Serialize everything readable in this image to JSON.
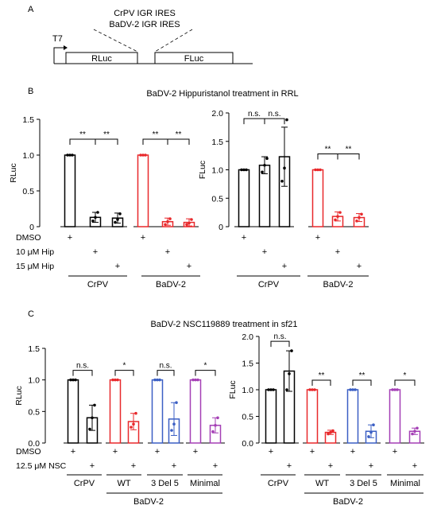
{
  "panel_labels": {
    "a": "A",
    "b": "B",
    "c": "C"
  },
  "construct": {
    "promoter": "T7",
    "ires_line1": "CrPV IGR IRES",
    "ires_line2": "BaDV-2 IGR IRES",
    "gene1": "RLuc",
    "gene2": "FLuc"
  },
  "panel_b": {
    "title": "BaDV-2 Hippuristanol treatment in RRL",
    "conditions": [
      "DMSO",
      "10 μM Hip",
      "15 μM Hip"
    ],
    "group_labels": [
      "CrPV",
      "BaDV-2"
    ],
    "colors": {
      "CrPV": "#000000",
      "BaDV-2": "#e8282b"
    }
  },
  "panel_c": {
    "title": "BaDV-2 NSC119889 treatment in sf21",
    "conditions": [
      "DMSO",
      "12.5 μM NSC"
    ],
    "group_labels": [
      "CrPV",
      "WT",
      "3 Del 5",
      "Minimal"
    ],
    "super_label": "BaDV-2",
    "colors": {
      "CrPV": "#000000",
      "WT": "#e8282b",
      "3 Del 5": "#3b5fc4",
      "Minimal": "#a43fb5"
    }
  },
  "chart_data": [
    {
      "id": "B-RLuc",
      "type": "bar",
      "ylabel": "RLuc",
      "ylim": [
        0,
        1.5
      ],
      "yticks": [
        "0",
        "0.5",
        "1.0",
        "1.5"
      ],
      "groups": [
        {
          "name": "CrPV",
          "color": "#000000",
          "values": [
            1.0,
            0.13,
            0.12
          ],
          "errors": [
            0,
            0.07,
            0.07
          ],
          "points": [
            [
              1.0,
              1.0,
              1.0
            ],
            [
              0.08,
              0.13,
              0.2
            ],
            [
              0.06,
              0.1,
              0.18
            ]
          ],
          "sig": [
            {
              "label": "**"
            },
            {
              "label": "**"
            }
          ]
        },
        {
          "name": "BaDV-2",
          "color": "#e8282b",
          "values": [
            1.0,
            0.07,
            0.06
          ],
          "errors": [
            0,
            0.05,
            0.05
          ],
          "points": [
            [
              1.0,
              1.0,
              1.0
            ],
            [
              0.03,
              0.07,
              0.11
            ],
            [
              0.03,
              0.05,
              0.1
            ]
          ],
          "sig": [
            {
              "label": "**"
            },
            {
              "label": "**"
            }
          ]
        }
      ]
    },
    {
      "id": "B-FLuc",
      "type": "bar",
      "ylabel": "FLuc",
      "ylim": [
        0,
        2.0
      ],
      "yticks": [
        "0",
        "0.5",
        "1.0",
        "1.5",
        "2.0"
      ],
      "groups": [
        {
          "name": "CrPV",
          "color": "#000000",
          "values": [
            1.0,
            1.08,
            1.23
          ],
          "errors": [
            0,
            0.15,
            0.52
          ],
          "points": [
            [
              1.0,
              1.0,
              1.0
            ],
            [
              0.96,
              1.08,
              1.2
            ],
            [
              0.8,
              1.03,
              1.88
            ]
          ],
          "sig": [
            {
              "label": "n.s."
            },
            {
              "label": "n.s."
            }
          ]
        },
        {
          "name": "BaDV-2",
          "color": "#e8282b",
          "values": [
            1.0,
            0.18,
            0.16
          ],
          "errors": [
            0,
            0.08,
            0.07
          ],
          "points": [
            [
              1.0,
              1.0,
              1.0
            ],
            [
              0.12,
              0.18,
              0.25
            ],
            [
              0.1,
              0.16,
              0.22
            ]
          ],
          "sig": [
            {
              "label": "**"
            },
            {
              "label": "**"
            }
          ]
        }
      ]
    },
    {
      "id": "C-RLuc",
      "type": "bar",
      "ylabel": "RLuc",
      "ylim": [
        0,
        1.5
      ],
      "yticks": [
        "0.0",
        "0.5",
        "1.0",
        "1.5"
      ],
      "groups": [
        {
          "name": "CrPV",
          "color": "#000000",
          "values": [
            1.0,
            0.4
          ],
          "errors": [
            0,
            0.2
          ],
          "points": [
            [
              1.0,
              1.0,
              1.0
            ],
            [
              0.22,
              0.4,
              0.6
            ]
          ],
          "sig": [
            {
              "label": "n.s."
            }
          ]
        },
        {
          "name": "WT",
          "color": "#e8282b",
          "values": [
            1.0,
            0.34
          ],
          "errors": [
            0,
            0.13
          ],
          "points": [
            [
              1.0,
              1.0,
              1.0
            ],
            [
              0.25,
              0.3,
              0.47
            ]
          ],
          "sig": [
            {
              "label": "*"
            }
          ]
        },
        {
          "name": "3 Del 5",
          "color": "#3b5fc4",
          "values": [
            1.0,
            0.38
          ],
          "errors": [
            0,
            0.26
          ],
          "points": [
            [
              1.0,
              1.0,
              1.0
            ],
            [
              0.2,
              0.3,
              0.64
            ]
          ],
          "sig": [
            {
              "label": "n.s."
            }
          ]
        },
        {
          "name": "Minimal",
          "color": "#a43fb5",
          "values": [
            1.0,
            0.28
          ],
          "errors": [
            0,
            0.12
          ],
          "points": [
            [
              1.0,
              1.0,
              1.0
            ],
            [
              0.18,
              0.28,
              0.4
            ]
          ],
          "sig": [
            {
              "label": "*"
            }
          ]
        }
      ]
    },
    {
      "id": "C-FLuc",
      "type": "bar",
      "ylabel": "FLuc",
      "ylim": [
        0,
        2.0
      ],
      "yticks": [
        "0.0",
        "0.5",
        "1.0",
        "1.5",
        "2.0"
      ],
      "groups": [
        {
          "name": "CrPV",
          "color": "#000000",
          "values": [
            1.0,
            1.35
          ],
          "errors": [
            0,
            0.38
          ],
          "points": [
            [
              1.0,
              1.0,
              1.0
            ],
            [
              1.0,
              1.3,
              1.73
            ]
          ],
          "sig": [
            {
              "label": "n.s."
            }
          ]
        },
        {
          "name": "WT",
          "color": "#e8282b",
          "values": [
            1.0,
            0.2
          ],
          "errors": [
            0,
            0.04
          ],
          "points": [
            [
              1.0,
              1.0,
              1.0
            ],
            [
              0.17,
              0.2,
              0.23
            ]
          ],
          "sig": [
            {
              "label": "**"
            }
          ]
        },
        {
          "name": "3 Del 5",
          "color": "#3b5fc4",
          "values": [
            1.0,
            0.22
          ],
          "errors": [
            0,
            0.12
          ],
          "points": [
            [
              1.0,
              1.0,
              1.0
            ],
            [
              0.12,
              0.2,
              0.34
            ]
          ],
          "sig": [
            {
              "label": "**"
            }
          ]
        },
        {
          "name": "Minimal",
          "color": "#a43fb5",
          "values": [
            1.0,
            0.22
          ],
          "errors": [
            0,
            0.06
          ],
          "points": [
            [
              1.0,
              1.0,
              1.0
            ],
            [
              0.17,
              0.22,
              0.28
            ]
          ],
          "sig": [
            {
              "label": "*"
            }
          ]
        }
      ]
    }
  ]
}
